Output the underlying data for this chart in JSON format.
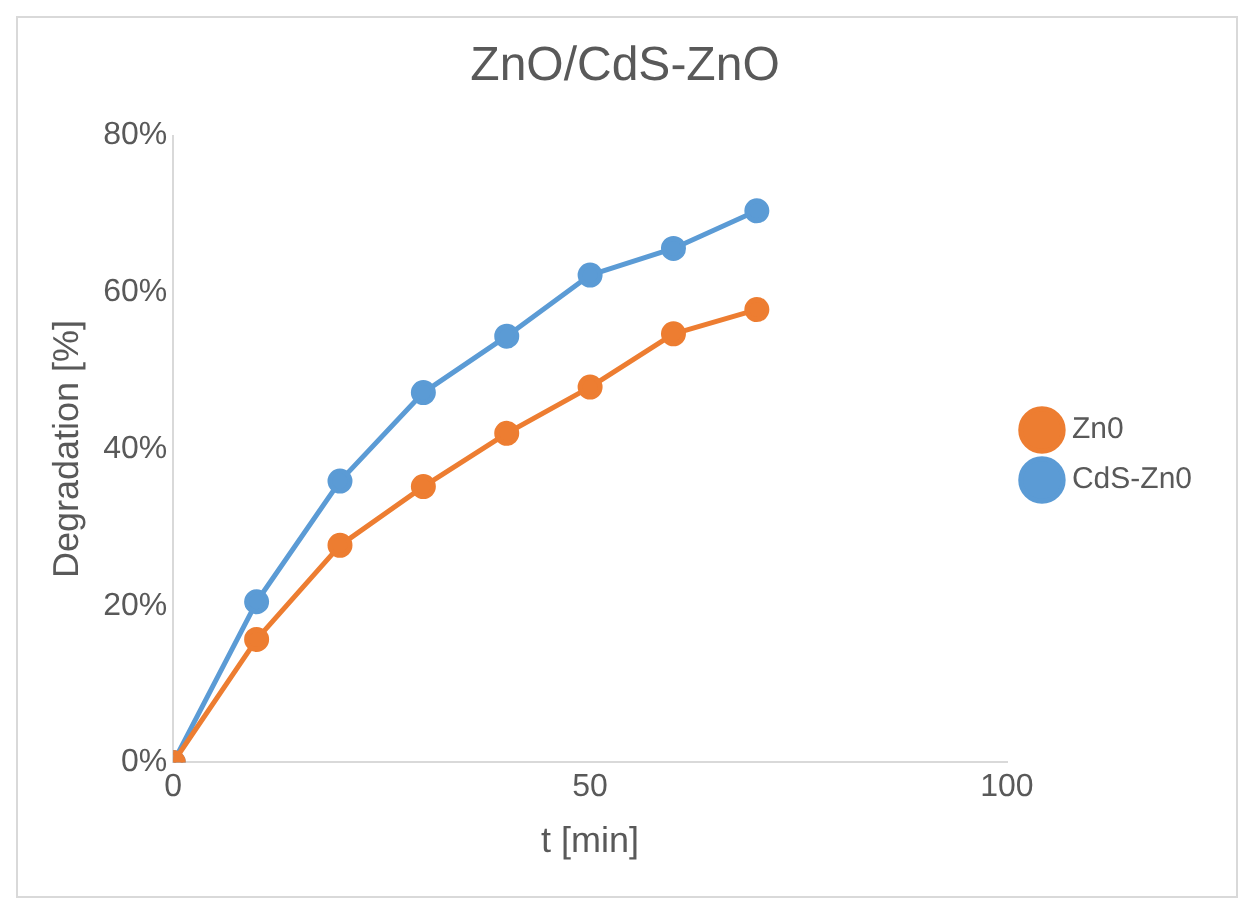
{
  "chart_data": {
    "type": "line",
    "title": "ZnO/CdS-ZnO",
    "xlabel": "t [min]",
    "ylabel": "Degradation [%]",
    "x": [
      0,
      10,
      20,
      30,
      40,
      50,
      60,
      70
    ],
    "series": [
      {
        "name": "Zn0",
        "color": "#ed7d31",
        "values": [
          0,
          15.7,
          27.7,
          35.2,
          42,
          47.9,
          54.7,
          57.8
        ]
      },
      {
        "name": "CdS-Zn0",
        "color": "#5b9bd5",
        "values": [
          0,
          20.5,
          35.9,
          47.2,
          54.4,
          62.2,
          65.6,
          70.4
        ]
      }
    ],
    "xlim": [
      0,
      100
    ],
    "xticks": [
      0,
      50,
      100
    ],
    "ylim": [
      0,
      80
    ],
    "yticks": [
      {
        "value": 0,
        "label": "0%"
      },
      {
        "value": 20,
        "label": "20%"
      },
      {
        "value": 40,
        "label": "40%"
      },
      {
        "value": 60,
        "label": "60%"
      },
      {
        "value": 80,
        "label": "80%"
      }
    ],
    "grid": false,
    "legend": "right",
    "marker": "circle",
    "line_style": "solid"
  }
}
